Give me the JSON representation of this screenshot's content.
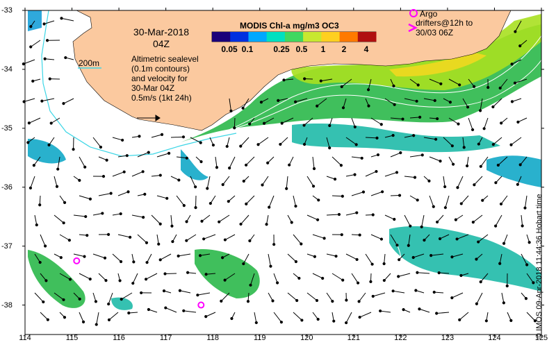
{
  "title": {
    "date": "30-Mar-2018",
    "time": "04Z"
  },
  "colorbar": {
    "label": "MODIS Chl-a mg/m3 OC3",
    "ticks": [
      "0.05",
      "0.1",
      "0.25",
      "0.5",
      "1",
      "2",
      "4"
    ],
    "colors": [
      "#1a007a",
      "#0030e0",
      "#00a8ff",
      "#00e0c0",
      "#40d860",
      "#c8e830",
      "#ffd020",
      "#ff7a00",
      "#b01010"
    ]
  },
  "legend": {
    "argo": "Argo",
    "drifters_line1": "drifters@12h to",
    "drifters_line2": "30/03 06Z",
    "contour_200m": "200m",
    "altimetry_lines": [
      "Altimetric sealevel",
      "(0.1m contours)",
      "and velocity for",
      "30-Mar 04Z",
      "0.5m/s (1kt 24h)"
    ]
  },
  "axes": {
    "x_ticks": [
      "114",
      "115",
      "116",
      "117",
      "118",
      "119",
      "120",
      "121",
      "122",
      "123",
      "124",
      "125"
    ],
    "y_ticks": [
      "-33",
      "-34",
      "-35",
      "-36",
      "-37",
      "-38"
    ],
    "lon_range": [
      114,
      125
    ],
    "lat_range": [
      -38.5,
      -33
    ]
  },
  "argo_floats": [
    {
      "lon": 115.1,
      "lat": -37.25
    },
    {
      "lon": 117.75,
      "lat": -38.0
    }
  ],
  "credit": "© IMOS 09-Apr-2018 11:44:36 Hobart time",
  "colors": {
    "land": "#fbc99f",
    "contour_200m": "#3cd6e6",
    "argo": "#ff00ff"
  }
}
